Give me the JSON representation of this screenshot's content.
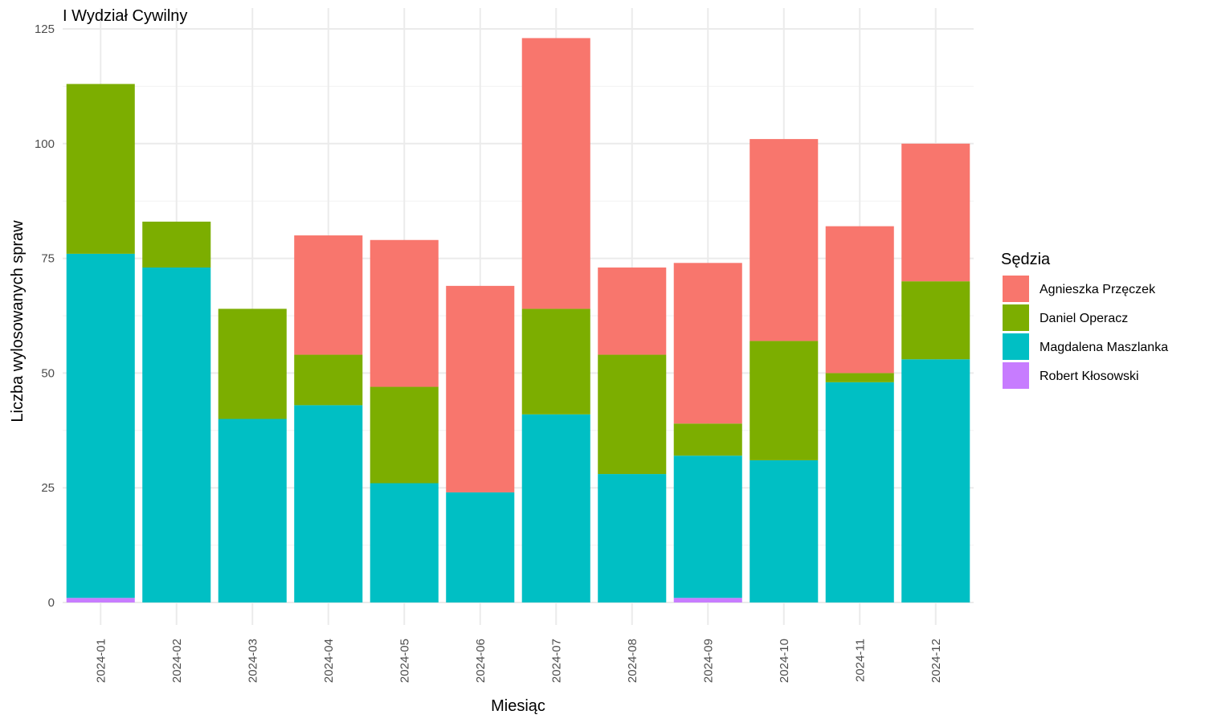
{
  "chart_data": {
    "type": "bar",
    "stacked": true,
    "title": "I Wydział Cywilny",
    "xlabel": "Miesiąc",
    "ylabel": "Liczba wylosowanych spraw",
    "ylim": [
      0,
      125
    ],
    "yticks": [
      0,
      25,
      50,
      75,
      100,
      125
    ],
    "grid": true,
    "legend_position": "right",
    "legend_title": "Sędzia",
    "categories": [
      "2024-01",
      "2024-02",
      "2024-03",
      "2024-04",
      "2024-05",
      "2024-06",
      "2024-07",
      "2024-08",
      "2024-09",
      "2024-10",
      "2024-11",
      "2024-12"
    ],
    "series": [
      {
        "name": "Agnieszka Przęczek",
        "color": "#F8766D",
        "values": [
          0,
          0,
          0,
          26,
          32,
          45,
          59,
          19,
          35,
          44,
          32,
          30
        ]
      },
      {
        "name": "Daniel Operacz",
        "color": "#7CAE00",
        "values": [
          37,
          10,
          24,
          11,
          21,
          0,
          23,
          26,
          7,
          26,
          2,
          17
        ]
      },
      {
        "name": "Magdalena Maszlanka",
        "color": "#00BFC4",
        "values": [
          75,
          73,
          40,
          43,
          26,
          24,
          41,
          28,
          31,
          31,
          48,
          53
        ]
      },
      {
        "name": "Robert Kłosowski",
        "color": "#C77CFF",
        "values": [
          1,
          0,
          0,
          0,
          0,
          0,
          0,
          0,
          1,
          0,
          0,
          0
        ]
      }
    ],
    "stack_order_bottom_to_top": [
      "Robert Kłosowski",
      "Magdalena Maszlanka",
      "Daniel Operacz",
      "Agnieszka Przęczek"
    ]
  }
}
